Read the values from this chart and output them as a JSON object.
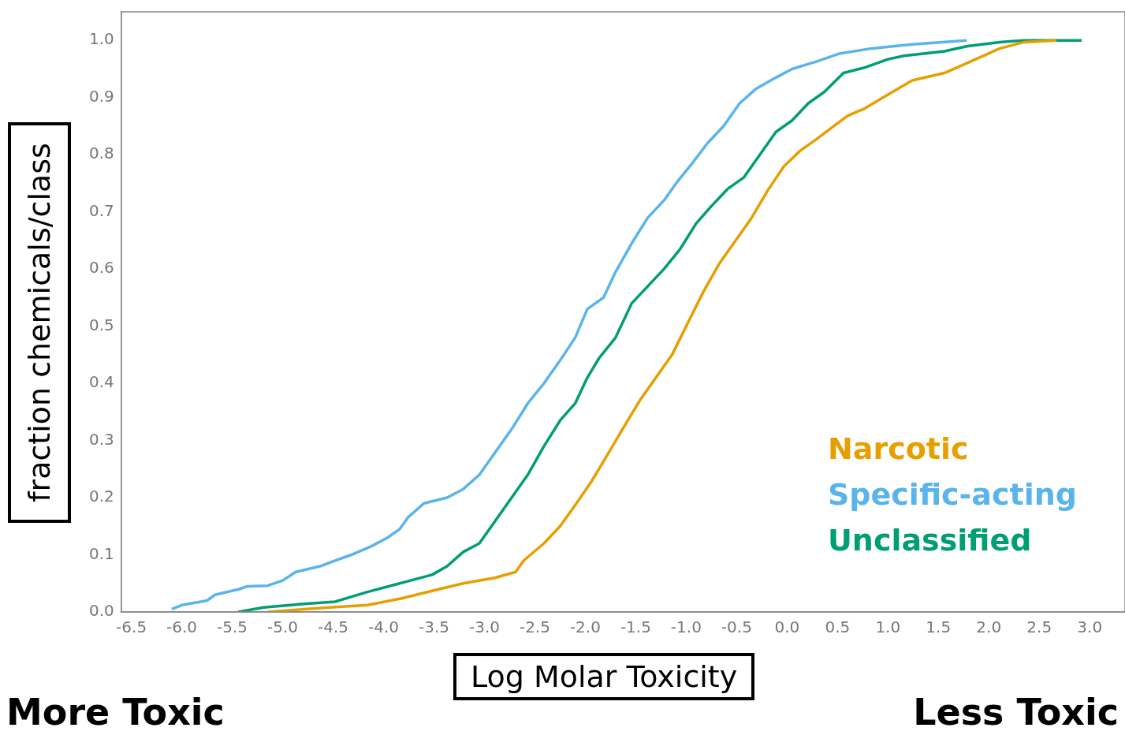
{
  "chart_data": {
    "type": "line",
    "xlabel": "Log Molar Toxicity",
    "ylabel": "fraction chemicals/class",
    "annotations": [
      "More Toxic",
      "Less Toxic"
    ],
    "xlim": [
      -6.6,
      3.35
    ],
    "ylim": [
      0,
      1.05
    ],
    "xticks": [
      {
        "value": -6.5,
        "label": "-6.5"
      },
      {
        "value": -6,
        "label": "-6.0"
      },
      {
        "value": -5.5,
        "label": "-5.5"
      },
      {
        "value": -5,
        "label": "-5.0"
      },
      {
        "value": -4.5,
        "label": "-4.5"
      },
      {
        "value": -4,
        "label": "-4.0"
      },
      {
        "value": -3.5,
        "label": "-3.5"
      },
      {
        "value": -3,
        "label": "-3.0"
      },
      {
        "value": -2.5,
        "label": "-2.5"
      },
      {
        "value": -2,
        "label": "-2.0"
      },
      {
        "value": -1.5,
        "label": "-1.5"
      },
      {
        "value": -1,
        "label": "-1.0"
      },
      {
        "value": -0.5,
        "label": "-0.5"
      },
      {
        "value": 0,
        "label": "0.0"
      },
      {
        "value": 0.5,
        "label": "0.5"
      },
      {
        "value": 1,
        "label": "1.0"
      },
      {
        "value": 1.5,
        "label": "1.5"
      },
      {
        "value": 2,
        "label": "2.0"
      },
      {
        "value": 2.5,
        "label": "2.5"
      },
      {
        "value": 3,
        "label": "3.0"
      }
    ],
    "yticks": [
      {
        "value": 0,
        "label": "0.0"
      },
      {
        "value": 0.1,
        "label": "0.1"
      },
      {
        "value": 0.2,
        "label": "0.2"
      },
      {
        "value": 0.3,
        "label": "0.3"
      },
      {
        "value": 0.4,
        "label": "0.4"
      },
      {
        "value": 0.5,
        "label": "0.5"
      },
      {
        "value": 0.6,
        "label": "0.6"
      },
      {
        "value": 0.7,
        "label": "0.7"
      },
      {
        "value": 0.8,
        "label": "0.8"
      },
      {
        "value": 0.9,
        "label": "0.9"
      },
      {
        "value": 1,
        "label": "1.0"
      }
    ],
    "legend": "bottom right",
    "marker": "none",
    "line_style": "solid",
    "series": [
      {
        "name": "Narcotic",
        "color": "#e69f00",
        "x": [
          -5.15,
          -4.63,
          -4.16,
          -3.84,
          -3.52,
          -3.21,
          -2.89,
          -2.69,
          -2.61,
          -2.41,
          -2.25,
          -2.1,
          -1.94,
          -1.78,
          -1.62,
          -1.46,
          -1.3,
          -1.14,
          -0.98,
          -0.83,
          -0.67,
          -0.51,
          -0.35,
          -0.19,
          -0.03,
          0.13,
          0.29,
          0.44,
          0.6,
          0.76,
          1.0,
          1.24,
          1.56,
          1.87,
          2.11,
          2.35,
          2.67
        ],
        "values": [
          0,
          0.007,
          0.012,
          0.023,
          0.037,
          0.05,
          0.06,
          0.07,
          0.09,
          0.12,
          0.15,
          0.187,
          0.228,
          0.275,
          0.323,
          0.37,
          0.41,
          0.45,
          0.507,
          0.56,
          0.61,
          0.65,
          0.69,
          0.738,
          0.78,
          0.807,
          0.827,
          0.847,
          0.868,
          0.88,
          0.905,
          0.93,
          0.943,
          0.967,
          0.986,
          0.997,
          1.0
        ]
      },
      {
        "name": "Specific-acting",
        "color": "#5ab4ec",
        "x": [
          -6.1,
          -6.0,
          -5.75,
          -5.67,
          -5.43,
          -5.35,
          -5.15,
          -5.0,
          -4.87,
          -4.63,
          -4.48,
          -4.32,
          -4.12,
          -3.96,
          -3.84,
          -3.76,
          -3.6,
          -3.37,
          -3.21,
          -3.05,
          -2.89,
          -2.73,
          -2.57,
          -2.41,
          -2.25,
          -2.1,
          -1.98,
          -1.82,
          -1.7,
          -1.54,
          -1.38,
          -1.22,
          -1.1,
          -0.94,
          -0.79,
          -0.63,
          -0.47,
          -0.31,
          -0.11,
          0.05,
          0.29,
          0.52,
          0.84,
          1.24,
          1.78
        ],
        "values": [
          0.005,
          0.012,
          0.02,
          0.03,
          0.04,
          0.045,
          0.046,
          0.055,
          0.07,
          0.08,
          0.09,
          0.1,
          0.115,
          0.13,
          0.145,
          0.165,
          0.19,
          0.2,
          0.215,
          0.24,
          0.28,
          0.32,
          0.365,
          0.4,
          0.44,
          0.48,
          0.53,
          0.55,
          0.595,
          0.645,
          0.69,
          0.72,
          0.75,
          0.785,
          0.82,
          0.85,
          0.89,
          0.915,
          0.935,
          0.95,
          0.963,
          0.977,
          0.986,
          0.993,
          1.0
        ]
      },
      {
        "name": "Unclassified",
        "color": "#009e73",
        "x": [
          -5.44,
          -5.19,
          -4.79,
          -4.48,
          -4.16,
          -3.84,
          -3.52,
          -3.37,
          -3.21,
          -3.05,
          -2.89,
          -2.73,
          -2.57,
          -2.41,
          -2.25,
          -2.1,
          -1.98,
          -1.86,
          -1.7,
          -1.54,
          -1.38,
          -1.22,
          -1.06,
          -0.9,
          -0.75,
          -0.59,
          -0.43,
          -0.27,
          -0.11,
          0.05,
          0.21,
          0.37,
          0.56,
          0.76,
          1.0,
          1.16,
          1.56,
          1.79,
          2.11,
          2.35,
          2.92
        ],
        "values": [
          0,
          0.008,
          0.014,
          0.018,
          0.035,
          0.05,
          0.065,
          0.08,
          0.105,
          0.12,
          0.16,
          0.2,
          0.24,
          0.29,
          0.335,
          0.365,
          0.41,
          0.445,
          0.48,
          0.54,
          0.57,
          0.6,
          0.635,
          0.68,
          0.71,
          0.74,
          0.76,
          0.8,
          0.84,
          0.86,
          0.89,
          0.91,
          0.943,
          0.952,
          0.967,
          0.973,
          0.981,
          0.99,
          0.997,
          1.0,
          1.0
        ]
      }
    ]
  }
}
